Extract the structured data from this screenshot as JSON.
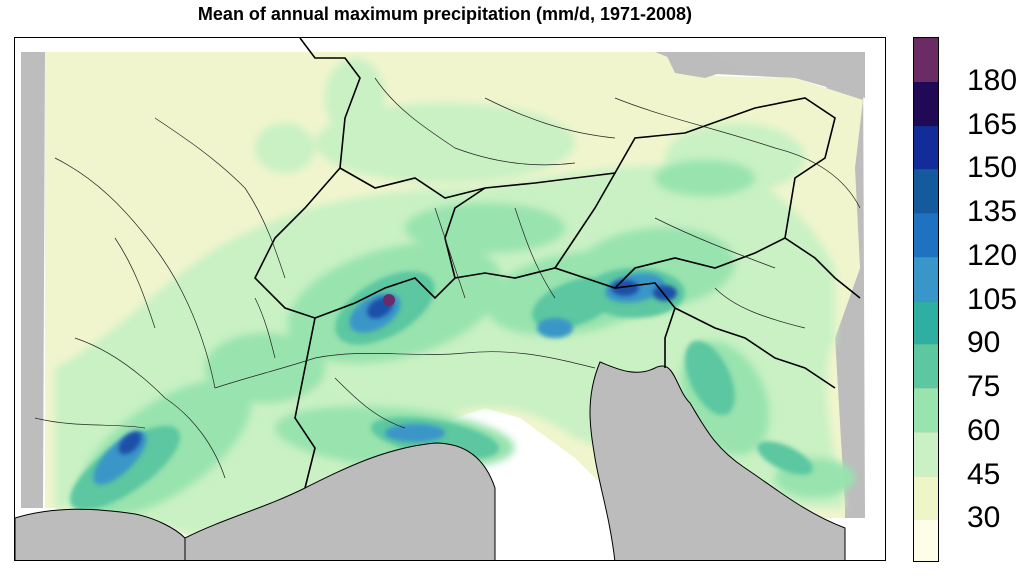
{
  "title": "Mean of annual maximum precipitation (mm/d, 1971-2008)",
  "colors": {
    "no_data": "#bdbdbd",
    "sea_grey": "#bcbcbc",
    "boundary": "#000000",
    "rivers": "#222222"
  },
  "legend": {
    "levels": [
      {
        "label": "30",
        "color": "#fefee8"
      },
      {
        "label": "45",
        "color": "#eef5c8"
      },
      {
        "label": "60",
        "color": "#c9f1c4"
      },
      {
        "label": "75",
        "color": "#98e3ae"
      },
      {
        "label": "90",
        "color": "#5cc7a0"
      },
      {
        "label": "105",
        "color": "#2faea2"
      },
      {
        "label": "120",
        "color": "#3a96c8"
      },
      {
        "label": "135",
        "color": "#1f72bf"
      },
      {
        "label": "150",
        "color": "#145a9c"
      },
      {
        "label": "165",
        "color": "#142c99"
      },
      {
        "label": "180",
        "color": "#200a55"
      }
    ],
    "top_color": "#6b2c66"
  }
}
